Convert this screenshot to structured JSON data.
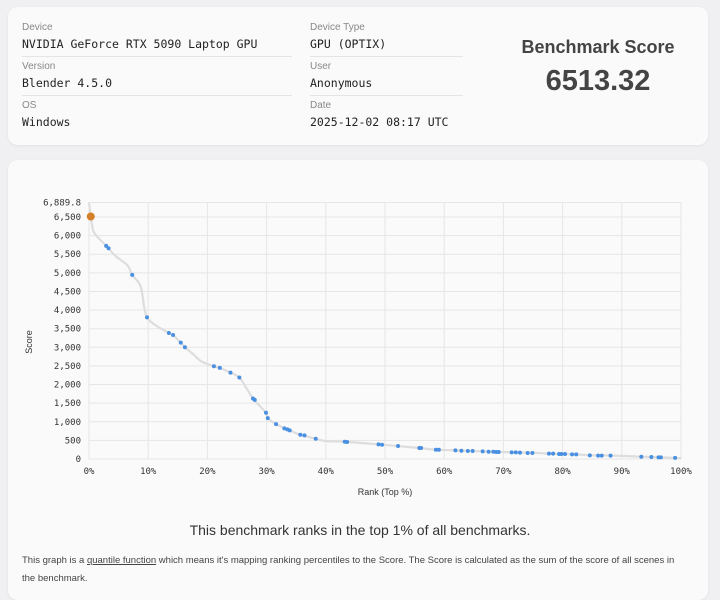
{
  "info": {
    "device_label": "Device",
    "device": "NVIDIA GeForce RTX 5090 Laptop GPU",
    "version_label": "Version",
    "version": "Blender 4.5.0",
    "os_label": "OS",
    "os": "Windows",
    "device_type_label": "Device Type",
    "device_type": "GPU (OPTIX)",
    "user_label": "User",
    "user": "Anonymous",
    "date_label": "Date",
    "date": "2025-12-02 08:17 UTC",
    "score_title": "Benchmark Score",
    "score": "6513.32"
  },
  "chart_data": {
    "type": "line",
    "xlabel": "Rank (Top %)",
    "ylabel": "Score",
    "xlim": [
      0,
      100
    ],
    "ylim": [
      0,
      6889.8
    ],
    "x_ticks": [
      "0%",
      "10%",
      "20%",
      "30%",
      "40%",
      "50%",
      "60%",
      "70%",
      "80%",
      "90%",
      "100%"
    ],
    "y_ticks": [
      "0",
      "500",
      "1,000",
      "1,500",
      "2,000",
      "2,500",
      "3,000",
      "3,500",
      "4,000",
      "4,500",
      "5,000",
      "5,500",
      "6,000",
      "6,500",
      "6,889.8"
    ],
    "y_tick_values": [
      0,
      500,
      1000,
      1500,
      2000,
      2500,
      3000,
      3500,
      4000,
      4500,
      5000,
      5500,
      6000,
      6500,
      6889.8
    ],
    "line_color": "#dddddd",
    "point_color": "#4a90e2",
    "highlight_color": "#d4802a",
    "highlight": {
      "x": 0.3,
      "y": 6513.32
    },
    "curve": [
      [
        0,
        6889.8
      ],
      [
        0.5,
        6300
      ],
      [
        1,
        6050
      ],
      [
        2.9,
        5724
      ],
      [
        4.5,
        5450
      ],
      [
        6.5,
        5200
      ],
      [
        7.3,
        4946
      ],
      [
        8.7,
        4650
      ],
      [
        9.3,
        4100
      ],
      [
        9.8,
        3804
      ],
      [
        11,
        3620
      ],
      [
        13.5,
        3384
      ],
      [
        14.2,
        3330
      ],
      [
        15.5,
        3125
      ],
      [
        16.2,
        3000
      ],
      [
        17.5,
        2830
      ],
      [
        19,
        2620
      ],
      [
        21.1,
        2491
      ],
      [
        22.1,
        2446
      ],
      [
        23.9,
        2321
      ],
      [
        25.4,
        2188
      ],
      [
        26.6,
        1900
      ],
      [
        27.7,
        1625
      ],
      [
        28.5,
        1480
      ],
      [
        29.9,
        1241
      ],
      [
        30.2,
        1098
      ],
      [
        31.6,
        937
      ],
      [
        33.5,
        795
      ],
      [
        35.7,
        652
      ],
      [
        38.3,
        545
      ],
      [
        40,
        480
      ],
      [
        43.4,
        464
      ],
      [
        48.9,
        393
      ],
      [
        52.2,
        348
      ],
      [
        55.8,
        295
      ],
      [
        58.6,
        250
      ],
      [
        61.9,
        232
      ],
      [
        66.5,
        205
      ],
      [
        71.4,
        179
      ],
      [
        74.9,
        170
      ],
      [
        77.7,
        143
      ],
      [
        82.3,
        125
      ],
      [
        84.6,
        98
      ],
      [
        88.1,
        95
      ],
      [
        93.3,
        62
      ],
      [
        96.6,
        45
      ],
      [
        100,
        20
      ]
    ],
    "points": [
      [
        2.9,
        5724
      ],
      [
        3.3,
        5661
      ],
      [
        7.3,
        4946
      ],
      [
        9.8,
        3804
      ],
      [
        13.5,
        3384
      ],
      [
        14.2,
        3330
      ],
      [
        15.5,
        3125
      ],
      [
        16.2,
        3000
      ],
      [
        21.1,
        2491
      ],
      [
        22.1,
        2446
      ],
      [
        23.9,
        2321
      ],
      [
        25.4,
        2188
      ],
      [
        27.7,
        1625
      ],
      [
        28.0,
        1589
      ],
      [
        29.9,
        1241
      ],
      [
        30.2,
        1098
      ],
      [
        31.6,
        937
      ],
      [
        33.0,
        821
      ],
      [
        33.5,
        795
      ],
      [
        33.9,
        768
      ],
      [
        35.7,
        652
      ],
      [
        36.4,
        634
      ],
      [
        38.3,
        545
      ],
      [
        43.2,
        464
      ],
      [
        43.6,
        455
      ],
      [
        48.9,
        393
      ],
      [
        49.5,
        384
      ],
      [
        52.2,
        348
      ],
      [
        55.8,
        295
      ],
      [
        56.1,
        295
      ],
      [
        58.6,
        250
      ],
      [
        59.1,
        250
      ],
      [
        61.9,
        232
      ],
      [
        62.9,
        223
      ],
      [
        64.0,
        214
      ],
      [
        64.8,
        214
      ],
      [
        66.5,
        205
      ],
      [
        67.5,
        196
      ],
      [
        68.3,
        196
      ],
      [
        68.8,
        188
      ],
      [
        69.2,
        188
      ],
      [
        71.4,
        179
      ],
      [
        72.1,
        179
      ],
      [
        72.8,
        170
      ],
      [
        74.1,
        161
      ],
      [
        74.9,
        161
      ],
      [
        77.7,
        143
      ],
      [
        78.4,
        143
      ],
      [
        79.4,
        134
      ],
      [
        79.8,
        134
      ],
      [
        80.4,
        134
      ],
      [
        81.6,
        125
      ],
      [
        82.3,
        125
      ],
      [
        84.6,
        98
      ],
      [
        86.0,
        89
      ],
      [
        86.6,
        89
      ],
      [
        88.1,
        89
      ],
      [
        93.3,
        62
      ],
      [
        95.0,
        54
      ],
      [
        96.2,
        45
      ],
      [
        96.6,
        45
      ],
      [
        99.0,
        30
      ]
    ]
  },
  "footer": {
    "rank_text": "This benchmark ranks in the top 1% of all benchmarks.",
    "desc_before": "This graph is a ",
    "desc_link": "quantile function",
    "desc_after": " which means it's mapping ranking percentiles to the Score. The Score is calculated as the sum of the score of all scenes in the benchmark."
  }
}
